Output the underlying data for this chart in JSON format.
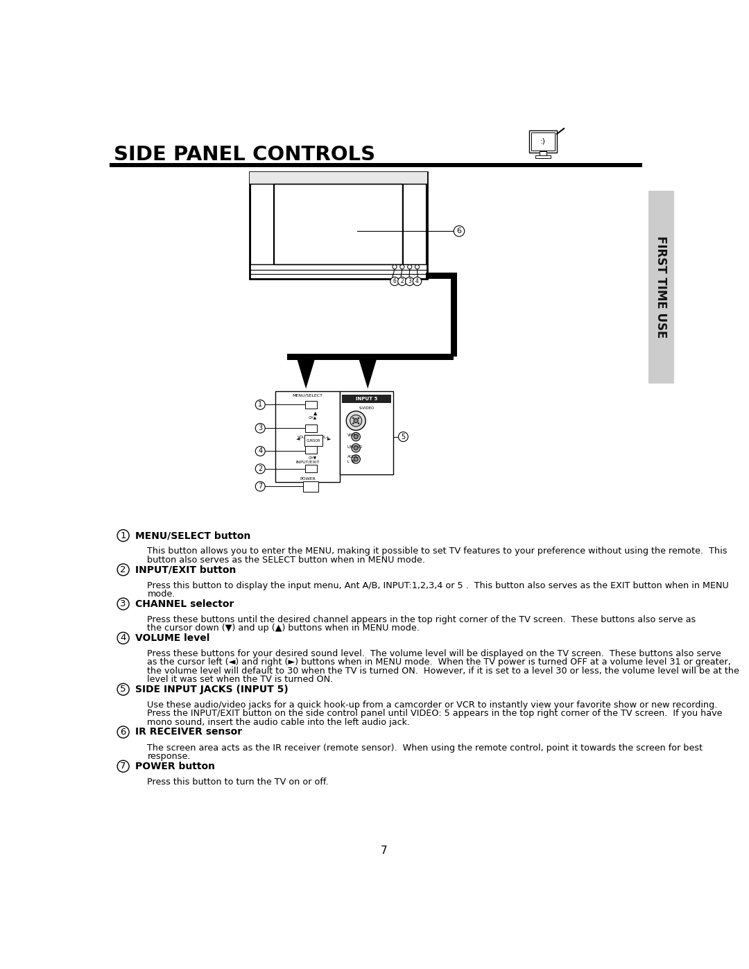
{
  "title": "SIDE PANEL CONTROLS",
  "page_number": "7",
  "sidebar_text": "FIRST TIME USE",
  "sidebar_bg": "#cccccc",
  "bg_color": "#ffffff",
  "text_color": "#000000",
  "sections": [
    {
      "num": "1",
      "heading": "MENU/SELECT button",
      "body": "This button allows you to enter the MENU, making it possible to set TV features to your preference without using the remote.  This\nbutton also serves as the SELECT button when in MENU mode."
    },
    {
      "num": "2",
      "heading": "INPUT/EXIT button",
      "body": "Press this button to display the input menu, Ant A/B, INPUT:1,2,3,4 or 5 .  This button also serves as the EXIT button when in MENU\nmode."
    },
    {
      "num": "3",
      "heading": "CHANNEL selector",
      "body": "Press these buttons until the desired channel appears in the top right corner of the TV screen.  These buttons also serve as\nthe cursor down (▼) and up (▲) buttons when in MENU mode."
    },
    {
      "num": "4",
      "heading": "VOLUME level",
      "body": "Press these buttons for your desired sound level.  The volume level will be displayed on the TV screen.  These buttons also serve\nas the cursor left (◄) and right (►) buttons when in MENU mode.  When the TV power is turned OFF at a volume level 31 or greater,\nthe volume level will default to 30 when the TV is turned ON.  However, if it is set to a level 30 or less, the volume level will be at the\nlevel it was set when the TV is turned ON."
    },
    {
      "num": "5",
      "heading": "SIDE INPUT JACKS (INPUT 5)",
      "body": "Use these audio/video jacks for a quick hook-up from a camcorder or VCR to instantly view your favorite show or new recording.\nPress the INPUT/EXIT button on the side control panel until VIDEO: 5 appears in the top right corner of the TV screen.  If you have\nmono sound, insert the audio cable into the left audio jack."
    },
    {
      "num": "6",
      "heading": "IR RECEIVER sensor",
      "body": "The screen area acts as the IR receiver (remote sensor).  When using the remote control, point it towards the screen for best\nresponse."
    },
    {
      "num": "7",
      "heading": "POWER button",
      "body": "Press this button to turn the TV on or off."
    }
  ]
}
